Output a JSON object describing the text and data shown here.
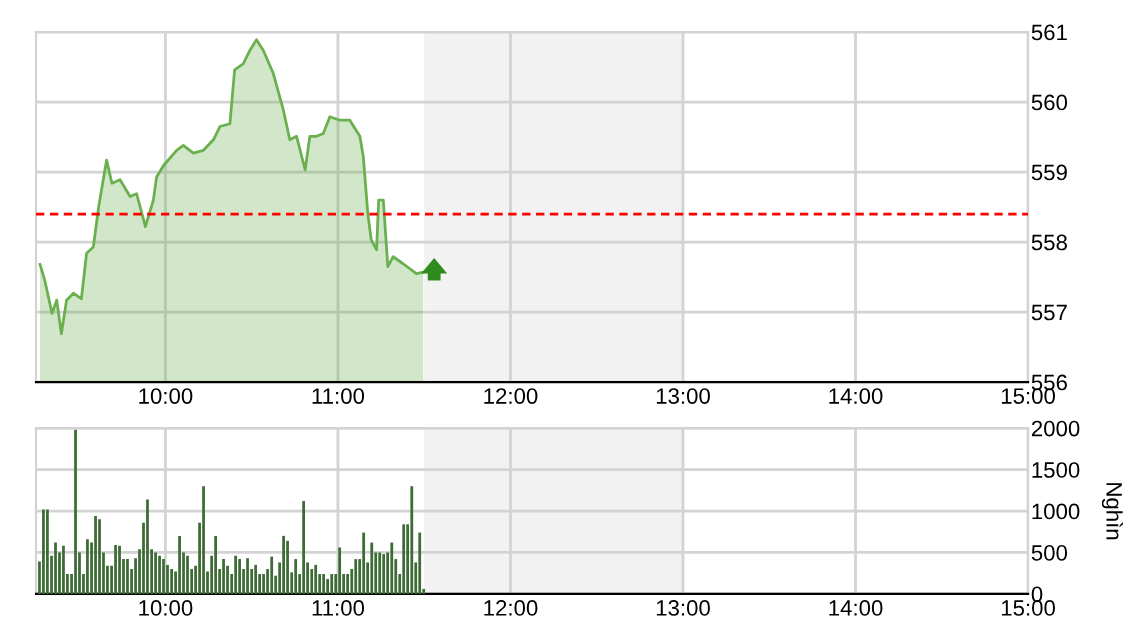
{
  "chart_data": [
    {
      "type": "area",
      "color": "#6bb04f",
      "x": [
        9.273,
        9.3,
        9.343,
        9.37,
        9.397,
        9.427,
        9.467,
        9.513,
        9.543,
        9.582,
        9.613,
        9.659,
        9.69,
        9.737,
        9.795,
        9.833,
        9.884,
        9.93,
        9.949,
        9.988,
        10.065,
        10.104,
        10.162,
        10.22,
        10.278,
        10.316,
        10.374,
        10.401,
        10.452,
        10.49,
        10.528,
        10.567,
        10.625,
        10.683,
        10.721,
        10.76,
        10.81,
        10.837,
        10.876,
        10.915,
        10.953,
        11.011,
        11.069,
        11.127,
        11.147,
        11.173,
        11.193,
        11.224,
        11.236,
        11.263,
        11.289,
        11.32,
        11.378,
        11.455,
        11.494
      ],
      "values": [
        557.68,
        557.46,
        556.98,
        557.17,
        556.69,
        557.17,
        557.27,
        557.19,
        557.84,
        557.93,
        558.5,
        559.17,
        558.84,
        558.89,
        558.65,
        558.69,
        558.22,
        558.6,
        558.93,
        559.09,
        559.31,
        559.38,
        559.27,
        559.31,
        559.46,
        559.65,
        559.69,
        560.46,
        560.55,
        560.74,
        560.89,
        560.74,
        560.41,
        559.89,
        559.46,
        559.51,
        559.03,
        559.51,
        559.51,
        559.55,
        559.79,
        559.74,
        559.74,
        559.51,
        559.22,
        558.41,
        558.03,
        557.89,
        558.6,
        558.6,
        557.65,
        557.79,
        557.69,
        557.55,
        557.57
      ],
      "xlim": [
        9.25,
        15
      ],
      "ylim": [
        556,
        561
      ],
      "xticks": [
        {
          "value": 10,
          "label": "10:00"
        },
        {
          "value": 11,
          "label": "11:00"
        },
        {
          "value": 12,
          "label": "12:00"
        },
        {
          "value": 13,
          "label": "13:00"
        },
        {
          "value": 14,
          "label": "14:00"
        },
        {
          "value": 15,
          "label": "15:00"
        }
      ],
      "yticks": [
        556,
        557,
        558,
        559,
        560,
        561
      ],
      "grid": true,
      "ref_lines": [
        {
          "axis": "y",
          "value": 558.4,
          "color": "#ff0000",
          "line_style": "dashed"
        }
      ],
      "bands": [
        {
          "axis": "x",
          "from": 11.5,
          "to": 13,
          "color": "#f2f2f2"
        }
      ]
    },
    {
      "type": "bar",
      "color": "#3d6b35",
      "ylabel": "Nghìn",
      "x": [
        9.27,
        9.293,
        9.316,
        9.34,
        9.363,
        9.386,
        9.409,
        9.432,
        9.456,
        9.479,
        9.502,
        9.525,
        9.548,
        9.572,
        9.595,
        9.618,
        9.641,
        9.664,
        9.688,
        9.711,
        9.734,
        9.757,
        9.78,
        9.804,
        9.827,
        9.85,
        9.873,
        9.896,
        9.92,
        9.943,
        9.966,
        9.989,
        10.012,
        10.036,
        10.059,
        10.082,
        10.105,
        10.128,
        10.152,
        10.175,
        10.198,
        10.221,
        10.244,
        10.268,
        10.291,
        10.314,
        10.337,
        10.36,
        10.384,
        10.407,
        10.43,
        10.453,
        10.476,
        10.5,
        10.523,
        10.546,
        10.569,
        10.592,
        10.616,
        10.639,
        10.662,
        10.685,
        10.708,
        10.732,
        10.755,
        10.778,
        10.801,
        10.824,
        10.848,
        10.871,
        10.894,
        10.917,
        10.94,
        10.964,
        10.987,
        11.01,
        11.033,
        11.056,
        11.08,
        11.103,
        11.126,
        11.149,
        11.172,
        11.196,
        11.219,
        11.242,
        11.265,
        11.288,
        11.312,
        11.335,
        11.358,
        11.381,
        11.404,
        11.428,
        11.451,
        11.474,
        11.497
      ],
      "values": [
        390,
        1020,
        1020,
        460,
        620,
        500,
        580,
        240,
        240,
        1980,
        500,
        240,
        660,
        620,
        940,
        900,
        500,
        340,
        340,
        590,
        580,
        420,
        420,
        300,
        430,
        540,
        860,
        1140,
        540,
        500,
        460,
        420,
        350,
        300,
        270,
        700,
        500,
        460,
        300,
        340,
        860,
        1300,
        270,
        460,
        700,
        300,
        420,
        340,
        240,
        460,
        420,
        300,
        430,
        300,
        350,
        240,
        240,
        300,
        450,
        220,
        380,
        700,
        640,
        260,
        420,
        240,
        1120,
        380,
        300,
        350,
        240,
        240,
        180,
        240,
        240,
        560,
        240,
        240,
        300,
        420,
        420,
        740,
        380,
        620,
        500,
        500,
        480,
        500,
        620,
        420,
        240,
        840,
        840,
        1300,
        380,
        740,
        60
      ],
      "xlim": [
        9.25,
        15
      ],
      "ylim": [
        0,
        2000
      ],
      "xticks": [
        {
          "value": 10,
          "label": "10:00"
        },
        {
          "value": 11,
          "label": "11:00"
        },
        {
          "value": 12,
          "label": "12:00"
        },
        {
          "value": 13,
          "label": "13:00"
        },
        {
          "value": 14,
          "label": "14:00"
        },
        {
          "value": 15,
          "label": "15:00"
        }
      ],
      "yticks": [
        0,
        500,
        1000,
        1500,
        2000
      ],
      "grid": true,
      "bands": [
        {
          "axis": "x",
          "from": 11.5,
          "to": 13,
          "color": "#f2f2f2"
        }
      ]
    }
  ]
}
